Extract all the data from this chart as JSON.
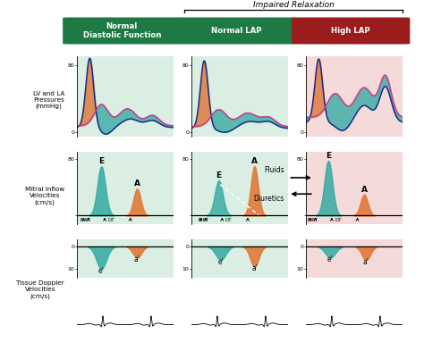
{
  "title": "Impaired Relaxation",
  "col_titles": [
    "Normal\nDiastolic Function",
    "Normal LAP",
    "High LAP"
  ],
  "col_header_colors": [
    "#1e7a45",
    "#1e7a45",
    "#9b1c1c"
  ],
  "col_bg_colors": [
    "#daeee3",
    "#daeee3",
    "#f5dada"
  ],
  "row_labels": [
    "LV and LA\nPressures\n(mmHg)",
    "Mitral Inflow\nVelocities\n(cm/s)",
    "Tissue Doppler\nVelocities\n(cm/s)"
  ],
  "teal_color": "#2ea8a0",
  "orange_color": "#e07535",
  "blue_line_color": "#1a2f8a",
  "pink_line_color": "#cc3d8a",
  "text_color": "#1a1a1a",
  "bracket_color": "#333333"
}
